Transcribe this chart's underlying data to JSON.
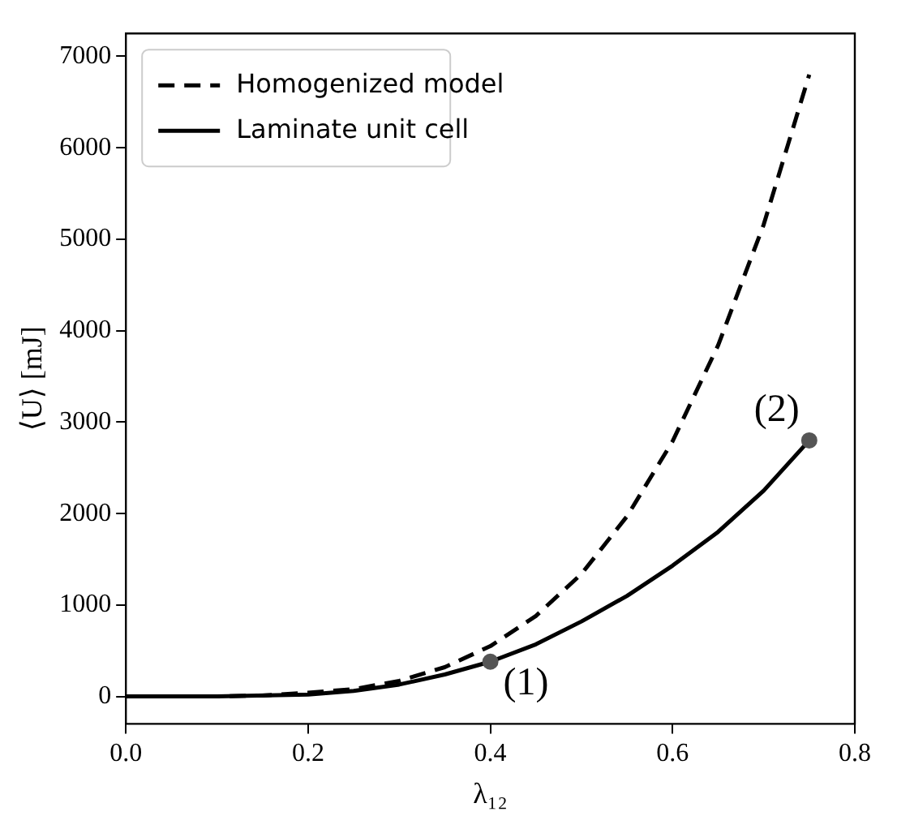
{
  "chart_data": {
    "type": "line",
    "xlabel": "λ₁₂",
    "ylabel": "⟨U⟩ [mJ]",
    "xlim": [
      0,
      0.8
    ],
    "xticks": [
      {
        "value": 0,
        "label": "0.0"
      },
      0.2,
      0.4,
      0.6,
      0.8
    ],
    "ylim": [
      -300,
      7250
    ],
    "yticks": [
      0,
      1000,
      2000,
      3000,
      4000,
      5000,
      6000,
      7000
    ],
    "grid": false,
    "legend": "top left",
    "marker": "none",
    "series": [
      {
        "name": "Homogenized model",
        "color": "#000000",
        "line_style": "dashed",
        "x": [
          0,
          0.1,
          0.15,
          0.2,
          0.25,
          0.3,
          0.35,
          0.4,
          0.45,
          0.5,
          0.55,
          0.6,
          0.65,
          0.7,
          0.75
        ],
        "values": [
          0,
          0,
          10,
          40,
          80,
          170,
          320,
          550,
          880,
          1340,
          1970,
          2790,
          3840,
          5160,
          6800
        ]
      },
      {
        "name": "Laminate unit cell",
        "color": "#000000",
        "line_style": "solid",
        "x": [
          0,
          0.1,
          0.2,
          0.25,
          0.3,
          0.35,
          0.4,
          0.45,
          0.5,
          0.55,
          0.6,
          0.65,
          0.7,
          0.75
        ],
        "values": [
          0,
          0,
          20,
          60,
          130,
          240,
          380,
          570,
          820,
          1100,
          1430,
          1800,
          2250,
          2800
        ]
      },
      {
        "type": "scatter",
        "color": "#555555",
        "marker": "circle",
        "x": [
          0.4,
          0.75
        ],
        "values": [
          380,
          2800
        ]
      }
    ],
    "annotations": [
      {
        "text": "(1)",
        "x": 0.4,
        "y": 380
      },
      {
        "text": "(2)",
        "x": 0.75,
        "y": 2800
      }
    ]
  }
}
